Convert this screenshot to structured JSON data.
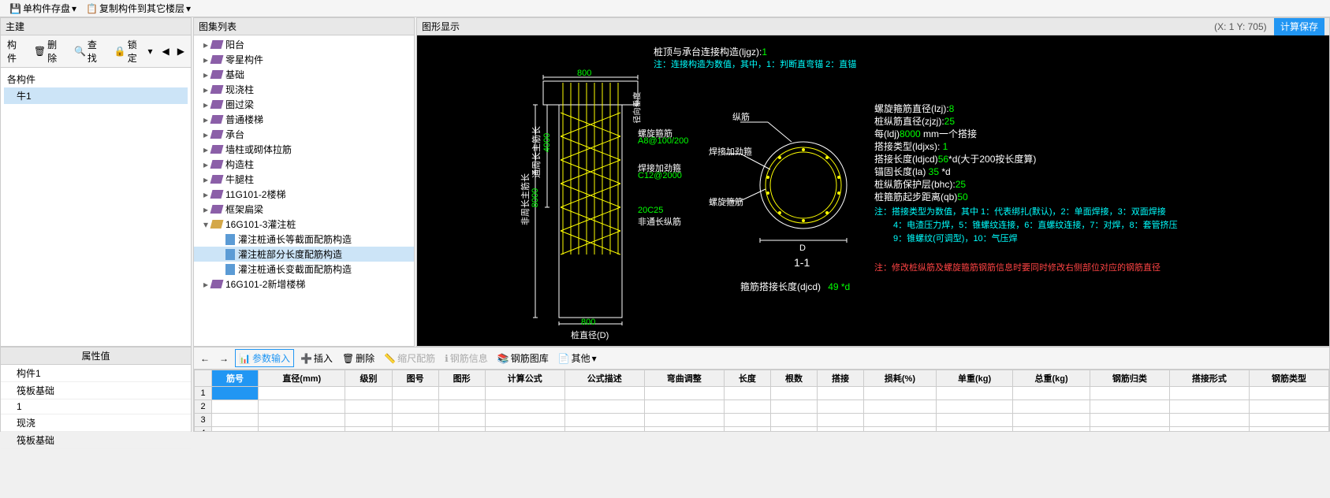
{
  "menu": {
    "save": "单构件存盘",
    "copy": "复制构件到其它楼层"
  },
  "left": {
    "title": "主建",
    "toolbar": {
      "member": "构件",
      "del": "删除",
      "find": "查找",
      "lock": "锁定"
    },
    "tree": {
      "root": "各构件",
      "item": "牛1"
    }
  },
  "mid": {
    "title": "图集列表",
    "nodes": [
      "阳台",
      "零星构件",
      "基础",
      "现浇柱",
      "圈过梁",
      "普通楼梯",
      "承台",
      "墙柱或砌体拉筋",
      "构造柱",
      "牛腿柱",
      "11G101-2楼梯",
      "框架扁梁"
    ],
    "expNode": "16G101-3灌注桩",
    "leaves": [
      "灌注桩通长等截面配筋构造",
      "灌注桩部分长度配筋构造",
      "灌注桩通长变截面配筋构造"
    ],
    "last": "16G101-2新增楼梯",
    "selLeaf": 1
  },
  "gfx": {
    "title": "图形显示",
    "coord": "(X: 1 Y: 705)",
    "calc": "计算保存",
    "canvas": {
      "title1": "桩顶与承台连接构造(ljgz):",
      "title1v": "1",
      "title2": "注：连接构造为数值，其中，1：判断直弯锚      2：直锚",
      "dimTop": "800",
      "vdim": "8000",
      "vdim2": "4000",
      "vlabel": "非周长主筋长",
      "vlabel2": "通周长主筋长",
      "sideLabel": "径向垂度",
      "stirrup": "螺旋箍筋",
      "stirrupV": "A8@100/200",
      "weld": "焊接加劲箍",
      "weldV": "C12@2000",
      "longbar": "20C25",
      "longbarL": "非通长纵筋",
      "dimBot": "800",
      "diaLabel": "桩直径(D)",
      "secLabel1": "纵筋",
      "secLabel2": "焊接加劲箍",
      "secLabel3": "螺旋箍筋",
      "secD": "D",
      "secName": "1-1",
      "overlap": "箍筋搭接长度(djcd)",
      "overlapV": "49 *d",
      "params": [
        {
          "k": "螺旋箍筋直径(lzj):",
          "v": "8"
        },
        {
          "k": "桩纵筋直径(zjzj):",
          "v": "25"
        },
        {
          "k": "每(ldj)",
          "v": "8000",
          "suffix": " mm一个搭接"
        },
        {
          "k": "搭接类型(ldjxs):",
          "v": " 1"
        },
        {
          "k": "搭接长度(ldjcd)",
          "v": "56",
          "suffix": "*d(大于200按长度算)"
        },
        {
          "k": "锚固长度(la)",
          "v": " 35",
          "suffix": " *d"
        },
        {
          "k": "桩纵筋保护层(bhc):",
          "v": "25"
        },
        {
          "k": "桩箍筋起步距离(qb)",
          "v": "50"
        }
      ],
      "note1": "注：搭接类型为数值，其中 1：代表绑扎(默认)，2：单面焊接，3：双面焊接",
      "note2": "4：电渣压力焊，5：锥螺纹连接，6：直螺纹连接，7：对焊，8：套管挤压",
      "note3": "9：锥螺纹(可调型)，10：气压焊",
      "note4": "注：修改桩纵筋及螺旋箍筋钢筋信息时要同时修改右侧部位对应的钢筋直径"
    }
  },
  "prop": {
    "header": "属性值",
    "rows": [
      "构件1",
      "筏板基础",
      "1",
      "现浇",
      "筏板基础"
    ]
  },
  "bottb": {
    "b1": "",
    "param": "参数输入",
    "ins": "插入",
    "del": "删除",
    "scale": "缩尺配筋",
    "info": "钢筋信息",
    "lib": "钢筋图库",
    "other": "其他"
  },
  "grid": {
    "cols": [
      "筋号",
      "直径(mm)",
      "级别",
      "图号",
      "图形",
      "计算公式",
      "公式描述",
      "弯曲调整",
      "长度",
      "根数",
      "搭接",
      "损耗(%)",
      "单重(kg)",
      "总重(kg)",
      "钢筋归类",
      "搭接形式",
      "钢筋类型"
    ],
    "rows": 4
  }
}
